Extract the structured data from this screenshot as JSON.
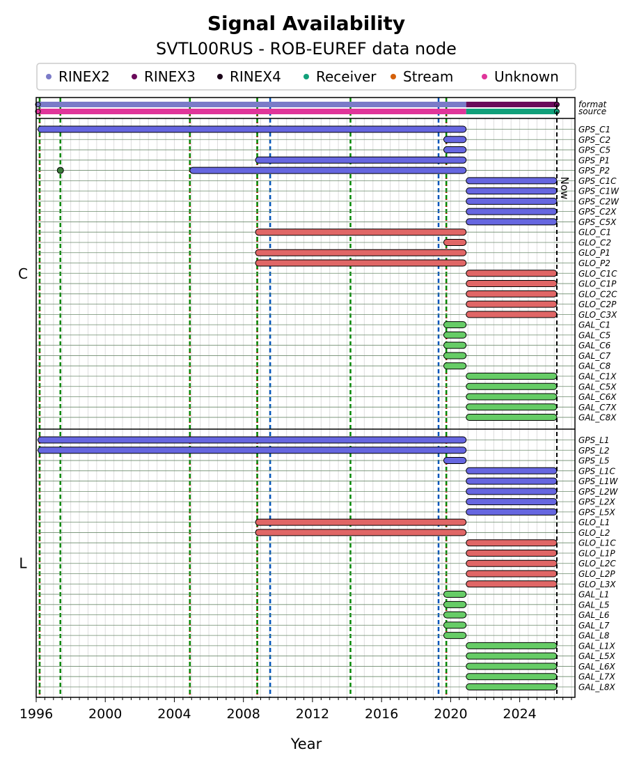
{
  "chart_data": {
    "type": "timeline",
    "title": "Signal Availability",
    "subtitle": "SVTL00RUS - ROB-EUREF data node",
    "xlabel": "Year",
    "xlim": [
      1996.0,
      2027.2
    ],
    "x_ticks": [
      "1996",
      "2000",
      "2004",
      "2008",
      "2012",
      "2016",
      "2020",
      "2024"
    ],
    "now_label": "Now",
    "now_year": 2026.15,
    "legend": [
      {
        "name": "RINEX2",
        "color": "#7b7bc8"
      },
      {
        "name": "RINEX3",
        "color": "#6a0a5a"
      },
      {
        "name": "RINEX4",
        "color": "#1a0018"
      },
      {
        "name": "Receiver",
        "color": "#11a07a"
      },
      {
        "name": "Stream",
        "color": "#d4600a"
      },
      {
        "name": "Unknown",
        "color": "#e0359a"
      }
    ],
    "colors": {
      "GPS": "#6666e0",
      "GLO": "#e06666",
      "GAL": "#66cc66"
    },
    "meta_rows": [
      {
        "label": "format",
        "segments": [
          {
            "start": 1996.1,
            "end": 2020.9,
            "color": "#7b7bc8"
          },
          {
            "start": 2020.9,
            "end": 2026.15,
            "color": "#6a0a5a"
          }
        ]
      },
      {
        "label": "source",
        "segments": [
          {
            "start": 1996.1,
            "end": 2020.9,
            "color": "#e0359a"
          },
          {
            "start": 2020.9,
            "end": 2026.15,
            "color": "#11a07a"
          }
        ]
      }
    ],
    "vlines": [
      {
        "year": 1996.2,
        "color": "#cc0000",
        "style": "dotted"
      },
      {
        "year": 1996.2,
        "color": "#008800",
        "style": "dashed"
      },
      {
        "year": 1997.4,
        "color": "#008800",
        "style": "dashed"
      },
      {
        "year": 2004.9,
        "color": "#cc0000",
        "style": "dotted"
      },
      {
        "year": 2004.9,
        "color": "#008800",
        "style": "dashed"
      },
      {
        "year": 2008.8,
        "color": "#cc0000",
        "style": "dotted"
      },
      {
        "year": 2008.8,
        "color": "#008800",
        "style": "dashed"
      },
      {
        "year": 2009.55,
        "color": "#0055bb",
        "style": "dashed"
      },
      {
        "year": 2014.2,
        "color": "#008800",
        "style": "dashed"
      },
      {
        "year": 2019.3,
        "color": "#0055bb",
        "style": "dashed"
      },
      {
        "year": 2019.75,
        "color": "#cc0000",
        "style": "dotted"
      },
      {
        "year": 2019.75,
        "color": "#008800",
        "style": "dashed"
      }
    ],
    "panels": [
      {
        "name": "C",
        "signals": [
          {
            "label": "GPS_C1",
            "sys": "GPS",
            "segments": [
              [
                1996.1,
                2020.9
              ]
            ]
          },
          {
            "label": "GPS_C2",
            "sys": "GPS",
            "segments": [
              [
                2019.6,
                2020.9
              ]
            ]
          },
          {
            "label": "GPS_C5",
            "sys": "GPS",
            "segments": [
              [
                2019.6,
                2020.9
              ]
            ]
          },
          {
            "label": "GPS_P1",
            "sys": "GPS",
            "segments": [
              [
                2008.7,
                2020.9
              ]
            ]
          },
          {
            "label": "GPS_P2",
            "sys": "GPS",
            "segments": [
              [
                1997.4,
                1997.4
              ],
              [
                2004.9,
                2020.9
              ]
            ]
          },
          {
            "label": "GPS_C1C",
            "sys": "GPS",
            "segments": [
              [
                2020.9,
                2026.15
              ]
            ]
          },
          {
            "label": "GPS_C1W",
            "sys": "GPS",
            "segments": [
              [
                2020.9,
                2026.15
              ]
            ]
          },
          {
            "label": "GPS_C2W",
            "sys": "GPS",
            "segments": [
              [
                2020.9,
                2026.15
              ]
            ]
          },
          {
            "label": "GPS_C2X",
            "sys": "GPS",
            "segments": [
              [
                2020.9,
                2026.15
              ]
            ]
          },
          {
            "label": "GPS_C5X",
            "sys": "GPS",
            "segments": [
              [
                2020.9,
                2026.15
              ]
            ]
          },
          {
            "label": "GLO_C1",
            "sys": "GLO",
            "segments": [
              [
                2008.7,
                2020.9
              ]
            ]
          },
          {
            "label": "GLO_C2",
            "sys": "GLO",
            "segments": [
              [
                2019.6,
                2020.9
              ]
            ]
          },
          {
            "label": "GLO_P1",
            "sys": "GLO",
            "segments": [
              [
                2008.7,
                2020.9
              ]
            ]
          },
          {
            "label": "GLO_P2",
            "sys": "GLO",
            "segments": [
              [
                2008.7,
                2020.9
              ]
            ]
          },
          {
            "label": "GLO_C1C",
            "sys": "GLO",
            "segments": [
              [
                2020.9,
                2026.15
              ]
            ]
          },
          {
            "label": "GLO_C1P",
            "sys": "GLO",
            "segments": [
              [
                2020.9,
                2026.15
              ]
            ]
          },
          {
            "label": "GLO_C2C",
            "sys": "GLO",
            "segments": [
              [
                2020.9,
                2026.15
              ]
            ]
          },
          {
            "label": "GLO_C2P",
            "sys": "GLO",
            "segments": [
              [
                2020.9,
                2026.15
              ]
            ]
          },
          {
            "label": "GLO_C3X",
            "sys": "GLO",
            "segments": [
              [
                2020.9,
                2026.15
              ]
            ]
          },
          {
            "label": "GAL_C1",
            "sys": "GAL",
            "segments": [
              [
                2019.6,
                2020.9
              ]
            ]
          },
          {
            "label": "GAL_C5",
            "sys": "GAL",
            "segments": [
              [
                2019.6,
                2020.9
              ]
            ]
          },
          {
            "label": "GAL_C6",
            "sys": "GAL",
            "segments": [
              [
                2019.6,
                2020.9
              ]
            ]
          },
          {
            "label": "GAL_C7",
            "sys": "GAL",
            "segments": [
              [
                2019.6,
                2020.9
              ]
            ]
          },
          {
            "label": "GAL_C8",
            "sys": "GAL",
            "segments": [
              [
                2019.6,
                2020.9
              ]
            ]
          },
          {
            "label": "GAL_C1X",
            "sys": "GAL",
            "segments": [
              [
                2020.9,
                2026.15
              ]
            ]
          },
          {
            "label": "GAL_C5X",
            "sys": "GAL",
            "segments": [
              [
                2020.9,
                2026.15
              ]
            ]
          },
          {
            "label": "GAL_C6X",
            "sys": "GAL",
            "segments": [
              [
                2020.9,
                2026.15
              ]
            ]
          },
          {
            "label": "GAL_C7X",
            "sys": "GAL",
            "segments": [
              [
                2020.9,
                2026.15
              ]
            ]
          },
          {
            "label": "GAL_C8X",
            "sys": "GAL",
            "segments": [
              [
                2020.9,
                2026.15
              ]
            ]
          }
        ]
      },
      {
        "name": "L",
        "signals": [
          {
            "label": "GPS_L1",
            "sys": "GPS",
            "segments": [
              [
                1996.1,
                2020.9
              ]
            ]
          },
          {
            "label": "GPS_L2",
            "sys": "GPS",
            "segments": [
              [
                1996.1,
                2020.9
              ]
            ]
          },
          {
            "label": "GPS_L5",
            "sys": "GPS",
            "segments": [
              [
                2019.6,
                2020.9
              ]
            ]
          },
          {
            "label": "GPS_L1C",
            "sys": "GPS",
            "segments": [
              [
                2020.9,
                2026.15
              ]
            ]
          },
          {
            "label": "GPS_L1W",
            "sys": "GPS",
            "segments": [
              [
                2020.9,
                2026.15
              ]
            ]
          },
          {
            "label": "GPS_L2W",
            "sys": "GPS",
            "segments": [
              [
                2020.9,
                2026.15
              ]
            ]
          },
          {
            "label": "GPS_L2X",
            "sys": "GPS",
            "segments": [
              [
                2020.9,
                2026.15
              ]
            ]
          },
          {
            "label": "GPS_L5X",
            "sys": "GPS",
            "segments": [
              [
                2020.9,
                2026.15
              ]
            ]
          },
          {
            "label": "GLO_L1",
            "sys": "GLO",
            "segments": [
              [
                2008.7,
                2020.9
              ]
            ]
          },
          {
            "label": "GLO_L2",
            "sys": "GLO",
            "segments": [
              [
                2008.7,
                2020.9
              ]
            ]
          },
          {
            "label": "GLO_L1C",
            "sys": "GLO",
            "segments": [
              [
                2020.9,
                2026.15
              ]
            ]
          },
          {
            "label": "GLO_L1P",
            "sys": "GLO",
            "segments": [
              [
                2020.9,
                2026.15
              ]
            ]
          },
          {
            "label": "GLO_L2C",
            "sys": "GLO",
            "segments": [
              [
                2020.9,
                2026.15
              ]
            ]
          },
          {
            "label": "GLO_L2P",
            "sys": "GLO",
            "segments": [
              [
                2020.9,
                2026.15
              ]
            ]
          },
          {
            "label": "GLO_L3X",
            "sys": "GLO",
            "segments": [
              [
                2020.9,
                2026.15
              ]
            ]
          },
          {
            "label": "GAL_L1",
            "sys": "GAL",
            "segments": [
              [
                2019.6,
                2020.9
              ]
            ]
          },
          {
            "label": "GAL_L5",
            "sys": "GAL",
            "segments": [
              [
                2019.6,
                2020.9
              ]
            ]
          },
          {
            "label": "GAL_L6",
            "sys": "GAL",
            "segments": [
              [
                2019.6,
                2020.9
              ]
            ]
          },
          {
            "label": "GAL_L7",
            "sys": "GAL",
            "segments": [
              [
                2019.6,
                2020.9
              ]
            ]
          },
          {
            "label": "GAL_L8",
            "sys": "GAL",
            "segments": [
              [
                2019.6,
                2020.9
              ]
            ]
          },
          {
            "label": "GAL_L1X",
            "sys": "GAL",
            "segments": [
              [
                2020.9,
                2026.15
              ]
            ]
          },
          {
            "label": "GAL_L5X",
            "sys": "GAL",
            "segments": [
              [
                2020.9,
                2026.15
              ]
            ]
          },
          {
            "label": "GAL_L6X",
            "sys": "GAL",
            "segments": [
              [
                2020.9,
                2026.15
              ]
            ]
          },
          {
            "label": "GAL_L7X",
            "sys": "GAL",
            "segments": [
              [
                2020.9,
                2026.15
              ]
            ]
          },
          {
            "label": "GAL_L8X",
            "sys": "GAL",
            "segments": [
              [
                2020.9,
                2026.15
              ]
            ]
          }
        ]
      }
    ]
  }
}
